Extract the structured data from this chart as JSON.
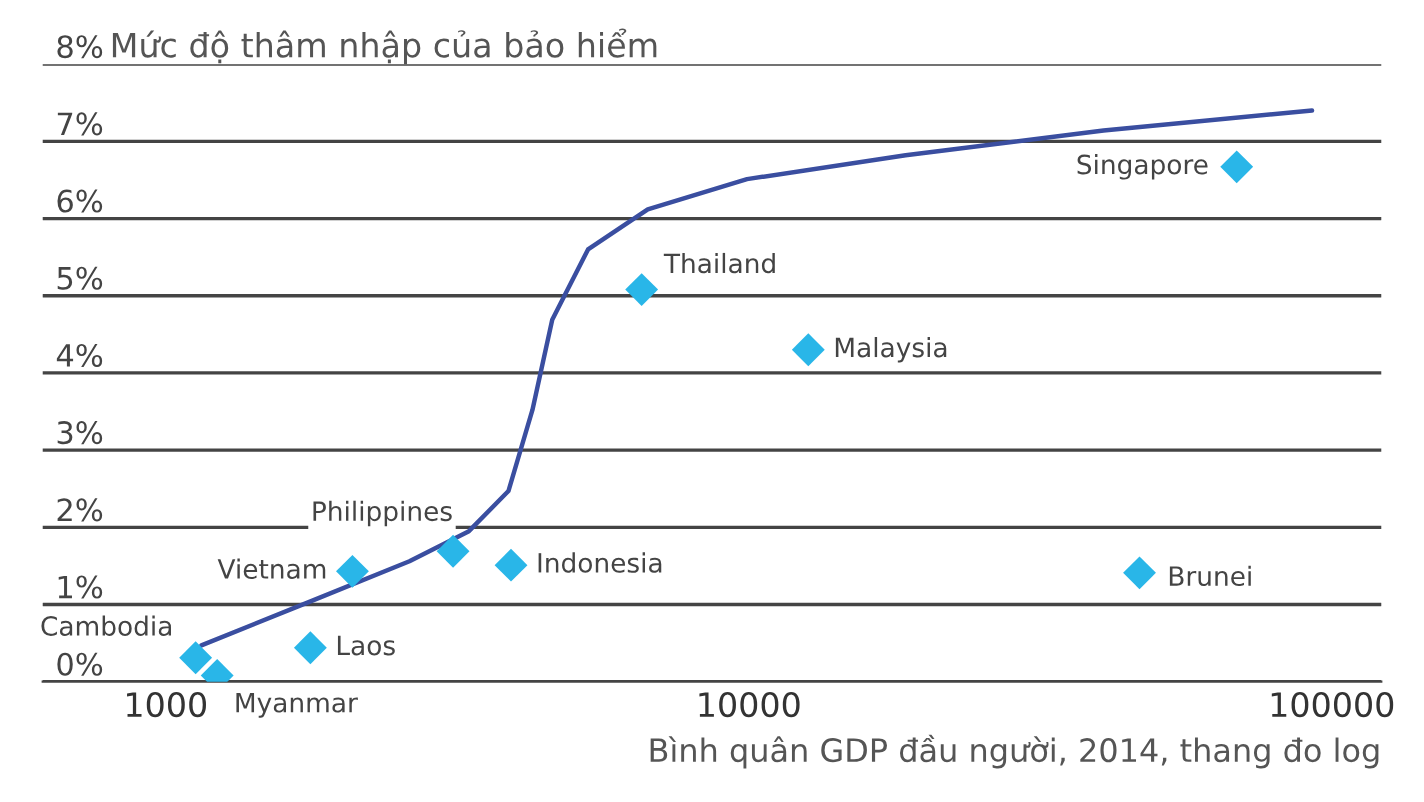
{
  "chart_data": {
    "type": "scatter",
    "ylabel": "Mức độ thâm nhập của bảo hiểm",
    "xlabel": "Bình quân GDP đầu người, 2014, thang đo log",
    "log": "x",
    "grid": "y",
    "xlim": [
      615,
      121600
    ],
    "xticks": [
      1000,
      10000,
      100000
    ],
    "ylim": [
      0,
      8
    ],
    "yticks": [
      {
        "value": 0,
        "label": "0%"
      },
      {
        "value": 1,
        "label": "1%"
      },
      {
        "value": 2,
        "label": "2%"
      },
      {
        "value": 3,
        "label": "3%"
      },
      {
        "value": 4,
        "label": "4%"
      },
      {
        "value": 5,
        "label": "5%"
      },
      {
        "value": 6,
        "label": "6%"
      },
      {
        "value": 7,
        "label": "7%"
      },
      {
        "value": 8,
        "label": "8%"
      }
    ],
    "series": [
      {
        "marker": "diamond",
        "color": "#29b6e8",
        "x": [
          1125,
          1225,
          1770,
          2090,
          3110,
          3910,
          6550,
          12650,
          46800,
          68700
        ],
        "values": [
          0.31,
          0.08,
          0.44,
          1.43,
          1.69,
          1.51,
          5.08,
          4.3,
          1.41,
          6.67
        ]
      },
      {
        "type": "line",
        "color": "#3a4ea0",
        "x": [
          1151,
          1771,
          2618,
          3311,
          3870,
          4255,
          4601,
          5300,
          6710,
          9930,
          18580,
          40600,
          92500
        ],
        "values": [
          0.47,
          1.04,
          1.56,
          1.95,
          2.47,
          3.52,
          4.69,
          5.6,
          6.12,
          6.51,
          6.82,
          7.14,
          7.4
        ]
      }
    ],
    "annotations": [
      {
        "text": "Cambodia",
        "x": 1125,
        "y": 0.31
      },
      {
        "text": "Myanmar",
        "x": 1225,
        "y": 0.08
      },
      {
        "text": "Laos",
        "x": 1770,
        "y": 0.44
      },
      {
        "text": "Vietnam",
        "x": 2090,
        "y": 1.43
      },
      {
        "text": "Philippines",
        "x": 3110,
        "y": 1.69
      },
      {
        "text": "Indonesia",
        "x": 3910,
        "y": 1.51
      },
      {
        "text": "Thailand",
        "x": 6550,
        "y": 5.08
      },
      {
        "text": "Malaysia",
        "x": 12650,
        "y": 4.3
      },
      {
        "text": "Brunei",
        "x": 46800,
        "y": 1.41
      },
      {
        "text": "Singapore",
        "x": 68700,
        "y": 6.67
      }
    ]
  }
}
